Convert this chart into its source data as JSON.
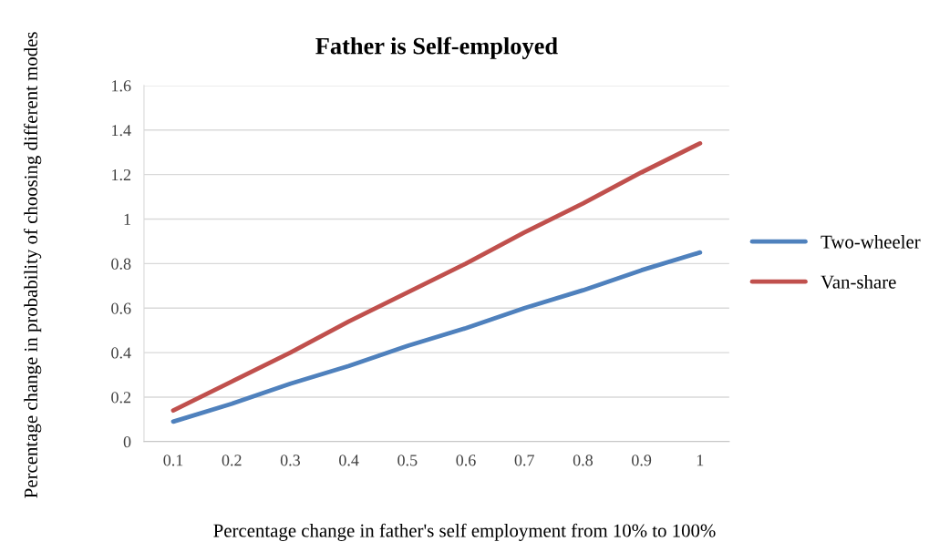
{
  "chart_data": {
    "type": "line",
    "title": "Father is Self-employed",
    "xlabel": "Percentage change in father's self employment from 10% to 100%",
    "ylabel": "Percentage change in probability of choosing different modes",
    "categories": [
      "0.1",
      "0.2",
      "0.3",
      "0.4",
      "0.5",
      "0.6",
      "0.7",
      "0.8",
      "0.9",
      "1"
    ],
    "series": [
      {
        "name": "Two-wheeler",
        "color": "#4f81bd",
        "values": [
          0.09,
          0.17,
          0.26,
          0.34,
          0.43,
          0.51,
          0.6,
          0.68,
          0.77,
          0.85
        ]
      },
      {
        "name": "Van-share",
        "color": "#c0504d",
        "values": [
          0.14,
          0.27,
          0.4,
          0.54,
          0.67,
          0.8,
          0.94,
          1.07,
          1.21,
          1.34
        ]
      }
    ],
    "ylim": [
      0,
      1.6
    ],
    "yticks": [
      0,
      0.2,
      0.4,
      0.6,
      0.8,
      1,
      1.2,
      1.4,
      1.6
    ],
    "grid": "y",
    "legend": "right",
    "marker": "none",
    "line_style": "solid"
  }
}
